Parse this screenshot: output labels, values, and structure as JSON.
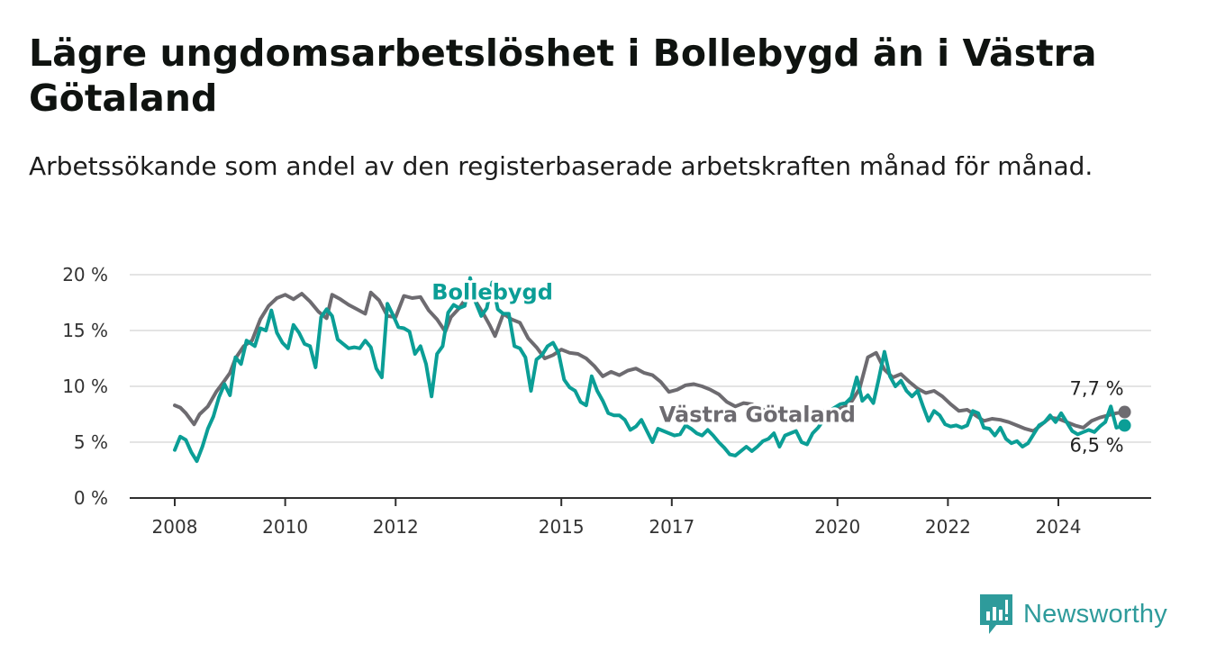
{
  "title": "Lägre ungdomsarbetslöshet i Bollebygd än i Västra Götaland",
  "subtitle": "Arbetssökande som andel av den registerbaserade arbetskraften månad för månad.",
  "brand": {
    "name": "Newsworthy",
    "color": "#2e9b9b"
  },
  "chart_data": {
    "type": "line",
    "ylim": [
      0,
      20
    ],
    "xlim": [
      2008,
      2025.9
    ],
    "y_ticks": [
      {
        "value": 0,
        "label": "0 %"
      },
      {
        "value": 5,
        "label": "5 %"
      },
      {
        "value": 10,
        "label": "10 %"
      },
      {
        "value": 15,
        "label": "15 %"
      },
      {
        "value": 20,
        "label": "20 %"
      }
    ],
    "x_ticks": [
      {
        "value": 2008,
        "label": "2008"
      },
      {
        "value": 2010,
        "label": "2010"
      },
      {
        "value": 2012,
        "label": "2012"
      },
      {
        "value": 2015,
        "label": "2015"
      },
      {
        "value": 2017,
        "label": "2017"
      },
      {
        "value": 2020,
        "label": "2020"
      },
      {
        "value": 2022,
        "label": "2022"
      },
      {
        "value": 2024,
        "label": "2024"
      }
    ],
    "grid": true,
    "series": [
      {
        "name": "Västra Götaland",
        "color": "#6d6b70",
        "end_label": "7,7 %",
        "points": [
          [
            2008.0,
            8.3
          ],
          [
            2008.1,
            8.1
          ],
          [
            2008.2,
            7.6
          ],
          [
            2008.35,
            6.6
          ],
          [
            2008.45,
            7.5
          ],
          [
            2008.6,
            8.2
          ],
          [
            2008.75,
            9.5
          ],
          [
            2008.9,
            10.5
          ],
          [
            2009.0,
            11.2
          ],
          [
            2009.1,
            12.5
          ],
          [
            2009.25,
            13.6
          ],
          [
            2009.4,
            14.1
          ],
          [
            2009.55,
            16.0
          ],
          [
            2009.7,
            17.2
          ],
          [
            2009.85,
            17.9
          ],
          [
            2010.0,
            18.2
          ],
          [
            2010.15,
            17.8
          ],
          [
            2010.3,
            18.3
          ],
          [
            2010.45,
            17.6
          ],
          [
            2010.6,
            16.7
          ],
          [
            2010.75,
            16.1
          ],
          [
            2010.85,
            18.2
          ],
          [
            2011.0,
            17.8
          ],
          [
            2011.15,
            17.3
          ],
          [
            2011.3,
            16.9
          ],
          [
            2011.45,
            16.5
          ],
          [
            2011.55,
            18.4
          ],
          [
            2011.7,
            17.7
          ],
          [
            2011.85,
            16.3
          ],
          [
            2012.0,
            16.2
          ],
          [
            2012.15,
            18.1
          ],
          [
            2012.3,
            17.9
          ],
          [
            2012.45,
            18.0
          ],
          [
            2012.6,
            16.8
          ],
          [
            2012.75,
            16.0
          ],
          [
            2012.9,
            14.9
          ],
          [
            2013.0,
            16.2
          ],
          [
            2013.15,
            17.0
          ],
          [
            2013.3,
            18.1
          ],
          [
            2013.45,
            17.6
          ],
          [
            2013.6,
            16.4
          ],
          [
            2013.7,
            15.5
          ],
          [
            2013.8,
            14.5
          ],
          [
            2013.95,
            16.5
          ],
          [
            2014.1,
            16.0
          ],
          [
            2014.25,
            15.7
          ],
          [
            2014.4,
            14.3
          ],
          [
            2014.55,
            13.5
          ],
          [
            2014.7,
            12.5
          ],
          [
            2014.85,
            12.8
          ],
          [
            2015.0,
            13.3
          ],
          [
            2015.15,
            13.0
          ],
          [
            2015.3,
            12.9
          ],
          [
            2015.45,
            12.5
          ],
          [
            2015.6,
            11.8
          ],
          [
            2015.75,
            10.9
          ],
          [
            2015.9,
            11.3
          ],
          [
            2016.05,
            11.0
          ],
          [
            2016.2,
            11.4
          ],
          [
            2016.35,
            11.6
          ],
          [
            2016.5,
            11.2
          ],
          [
            2016.65,
            11.0
          ],
          [
            2016.8,
            10.4
          ],
          [
            2016.95,
            9.5
          ],
          [
            2017.1,
            9.7
          ],
          [
            2017.25,
            10.1
          ],
          [
            2017.4,
            10.2
          ],
          [
            2017.55,
            10.0
          ],
          [
            2017.7,
            9.7
          ],
          [
            2017.85,
            9.3
          ],
          [
            2018.0,
            8.6
          ],
          [
            2018.15,
            8.2
          ],
          [
            2018.3,
            8.5
          ],
          [
            2018.45,
            8.4
          ],
          [
            2018.6,
            8.0
          ],
          [
            2018.75,
            7.8
          ],
          [
            2018.9,
            7.6
          ],
          [
            2019.05,
            7.8
          ],
          [
            2019.2,
            7.4
          ],
          [
            2019.35,
            7.2
          ],
          [
            2019.5,
            7.5
          ],
          [
            2019.65,
            7.7
          ],
          [
            2019.8,
            7.8
          ],
          [
            2019.95,
            7.9
          ],
          [
            2020.1,
            8.1
          ],
          [
            2020.25,
            8.6
          ],
          [
            2020.4,
            9.8
          ],
          [
            2020.55,
            12.6
          ],
          [
            2020.7,
            13.0
          ],
          [
            2020.85,
            11.5
          ],
          [
            2021.0,
            10.8
          ],
          [
            2021.15,
            11.1
          ],
          [
            2021.3,
            10.4
          ],
          [
            2021.45,
            9.8
          ],
          [
            2021.6,
            9.4
          ],
          [
            2021.75,
            9.6
          ],
          [
            2021.9,
            9.1
          ],
          [
            2022.05,
            8.4
          ],
          [
            2022.2,
            7.8
          ],
          [
            2022.35,
            7.9
          ],
          [
            2022.5,
            7.4
          ],
          [
            2022.65,
            6.9
          ],
          [
            2022.8,
            7.1
          ],
          [
            2022.95,
            7.0
          ],
          [
            2023.1,
            6.8
          ],
          [
            2023.25,
            6.5
          ],
          [
            2023.4,
            6.2
          ],
          [
            2023.55,
            6.0
          ],
          [
            2023.7,
            6.6
          ],
          [
            2023.85,
            7.2
          ],
          [
            2024.0,
            7.1
          ],
          [
            2024.15,
            6.8
          ],
          [
            2024.3,
            6.5
          ],
          [
            2024.45,
            6.3
          ],
          [
            2024.6,
            6.9
          ],
          [
            2024.75,
            7.2
          ],
          [
            2024.9,
            7.4
          ],
          [
            2025.05,
            7.6
          ],
          [
            2025.2,
            7.7
          ]
        ]
      },
      {
        "name": "Bollebygd",
        "color": "#0b9e96",
        "end_label": "6,5 %",
        "points": [
          [
            2008.0,
            4.3
          ],
          [
            2008.1,
            5.5
          ],
          [
            2008.2,
            5.2
          ],
          [
            2008.3,
            4.1
          ],
          [
            2008.4,
            3.3
          ],
          [
            2008.5,
            4.6
          ],
          [
            2008.6,
            6.2
          ],
          [
            2008.7,
            7.3
          ],
          [
            2008.8,
            9.0
          ],
          [
            2008.9,
            10.2
          ],
          [
            2009.0,
            9.2
          ],
          [
            2009.1,
            12.6
          ],
          [
            2009.2,
            12.0
          ],
          [
            2009.3,
            14.1
          ],
          [
            2009.45,
            13.6
          ],
          [
            2009.55,
            15.2
          ],
          [
            2009.65,
            15.0
          ],
          [
            2009.75,
            16.8
          ],
          [
            2009.85,
            14.8
          ],
          [
            2009.95,
            13.9
          ],
          [
            2010.05,
            13.4
          ],
          [
            2010.15,
            15.5
          ],
          [
            2010.25,
            14.8
          ],
          [
            2010.35,
            13.8
          ],
          [
            2010.45,
            13.6
          ],
          [
            2010.55,
            11.7
          ],
          [
            2010.65,
            16.2
          ],
          [
            2010.75,
            16.9
          ],
          [
            2010.85,
            16.3
          ],
          [
            2010.95,
            14.2
          ],
          [
            2011.05,
            13.8
          ],
          [
            2011.15,
            13.4
          ],
          [
            2011.25,
            13.5
          ],
          [
            2011.35,
            13.4
          ],
          [
            2011.45,
            14.1
          ],
          [
            2011.55,
            13.5
          ],
          [
            2011.65,
            11.6
          ],
          [
            2011.75,
            10.8
          ],
          [
            2011.85,
            17.4
          ],
          [
            2011.95,
            16.4
          ],
          [
            2012.05,
            15.3
          ],
          [
            2012.15,
            15.2
          ],
          [
            2012.25,
            14.9
          ],
          [
            2012.35,
            12.9
          ],
          [
            2012.45,
            13.6
          ],
          [
            2012.55,
            12.0
          ],
          [
            2012.65,
            9.1
          ],
          [
            2012.75,
            12.9
          ],
          [
            2012.85,
            13.6
          ],
          [
            2012.95,
            16.6
          ],
          [
            2013.05,
            17.3
          ],
          [
            2013.15,
            17.0
          ],
          [
            2013.25,
            17.2
          ],
          [
            2013.35,
            19.7
          ],
          [
            2013.45,
            17.5
          ],
          [
            2013.55,
            16.3
          ],
          [
            2013.65,
            17.0
          ],
          [
            2013.75,
            19.3
          ],
          [
            2013.85,
            16.9
          ],
          [
            2013.95,
            16.5
          ],
          [
            2014.05,
            16.5
          ],
          [
            2014.15,
            13.6
          ],
          [
            2014.25,
            13.4
          ],
          [
            2014.35,
            12.6
          ],
          [
            2014.45,
            9.6
          ],
          [
            2014.55,
            12.4
          ],
          [
            2014.65,
            12.8
          ],
          [
            2014.75,
            13.6
          ],
          [
            2014.85,
            13.9
          ],
          [
            2014.95,
            13.0
          ],
          [
            2015.05,
            10.6
          ],
          [
            2015.15,
            9.9
          ],
          [
            2015.25,
            9.6
          ],
          [
            2015.35,
            8.6
          ],
          [
            2015.45,
            8.3
          ],
          [
            2015.55,
            10.9
          ],
          [
            2015.65,
            9.6
          ],
          [
            2015.75,
            8.7
          ],
          [
            2015.85,
            7.6
          ],
          [
            2015.95,
            7.4
          ],
          [
            2016.05,
            7.4
          ],
          [
            2016.15,
            7.0
          ],
          [
            2016.25,
            6.1
          ],
          [
            2016.35,
            6.4
          ],
          [
            2016.45,
            7.0
          ],
          [
            2016.55,
            6.0
          ],
          [
            2016.65,
            5.0
          ],
          [
            2016.75,
            6.2
          ],
          [
            2016.85,
            6.0
          ],
          [
            2016.95,
            5.8
          ],
          [
            2017.05,
            5.6
          ],
          [
            2017.15,
            5.7
          ],
          [
            2017.25,
            6.5
          ],
          [
            2017.35,
            6.2
          ],
          [
            2017.45,
            5.8
          ],
          [
            2017.55,
            5.6
          ],
          [
            2017.65,
            6.1
          ],
          [
            2017.75,
            5.6
          ],
          [
            2017.85,
            5.0
          ],
          [
            2017.95,
            4.5
          ],
          [
            2018.05,
            3.9
          ],
          [
            2018.15,
            3.8
          ],
          [
            2018.25,
            4.2
          ],
          [
            2018.35,
            4.6
          ],
          [
            2018.45,
            4.2
          ],
          [
            2018.55,
            4.6
          ],
          [
            2018.65,
            5.1
          ],
          [
            2018.75,
            5.3
          ],
          [
            2018.85,
            5.8
          ],
          [
            2018.95,
            4.6
          ],
          [
            2019.05,
            5.6
          ],
          [
            2019.15,
            5.8
          ],
          [
            2019.25,
            6.0
          ],
          [
            2019.35,
            5.0
          ],
          [
            2019.45,
            4.8
          ],
          [
            2019.55,
            5.8
          ],
          [
            2019.65,
            6.3
          ],
          [
            2019.75,
            7.0
          ],
          [
            2019.85,
            7.8
          ],
          [
            2019.95,
            8.1
          ],
          [
            2020.05,
            8.4
          ],
          [
            2020.15,
            8.5
          ],
          [
            2020.25,
            9.0
          ],
          [
            2020.35,
            10.8
          ],
          [
            2020.45,
            8.7
          ],
          [
            2020.55,
            9.2
          ],
          [
            2020.65,
            8.5
          ],
          [
            2020.75,
            10.7
          ],
          [
            2020.85,
            13.1
          ],
          [
            2020.95,
            10.9
          ],
          [
            2021.05,
            10.0
          ],
          [
            2021.15,
            10.5
          ],
          [
            2021.25,
            9.6
          ],
          [
            2021.35,
            9.1
          ],
          [
            2021.45,
            9.6
          ],
          [
            2021.55,
            8.2
          ],
          [
            2021.65,
            6.9
          ],
          [
            2021.75,
            7.8
          ],
          [
            2021.85,
            7.4
          ],
          [
            2021.95,
            6.6
          ],
          [
            2022.05,
            6.4
          ],
          [
            2022.15,
            6.5
          ],
          [
            2022.25,
            6.3
          ],
          [
            2022.35,
            6.5
          ],
          [
            2022.45,
            7.8
          ],
          [
            2022.55,
            7.6
          ],
          [
            2022.65,
            6.3
          ],
          [
            2022.75,
            6.2
          ],
          [
            2022.85,
            5.6
          ],
          [
            2022.95,
            6.3
          ],
          [
            2023.05,
            5.3
          ],
          [
            2023.15,
            4.9
          ],
          [
            2023.25,
            5.1
          ],
          [
            2023.35,
            4.6
          ],
          [
            2023.45,
            4.9
          ],
          [
            2023.55,
            5.7
          ],
          [
            2023.65,
            6.5
          ],
          [
            2023.75,
            6.8
          ],
          [
            2023.85,
            7.4
          ],
          [
            2023.95,
            6.8
          ],
          [
            2024.05,
            7.6
          ],
          [
            2024.15,
            6.8
          ],
          [
            2024.25,
            6.0
          ],
          [
            2024.35,
            5.7
          ],
          [
            2024.45,
            5.9
          ],
          [
            2024.55,
            6.1
          ],
          [
            2024.65,
            5.9
          ],
          [
            2024.75,
            6.4
          ],
          [
            2024.85,
            6.8
          ],
          [
            2024.95,
            8.2
          ],
          [
            2025.05,
            6.3
          ],
          [
            2025.2,
            6.5
          ]
        ]
      }
    ],
    "series_labels": [
      {
        "series": "Bollebygd",
        "x": 2013.75,
        "y": 17.8
      },
      {
        "series": "Västra Götaland",
        "x": 2018.55,
        "y": 6.8
      }
    ]
  }
}
